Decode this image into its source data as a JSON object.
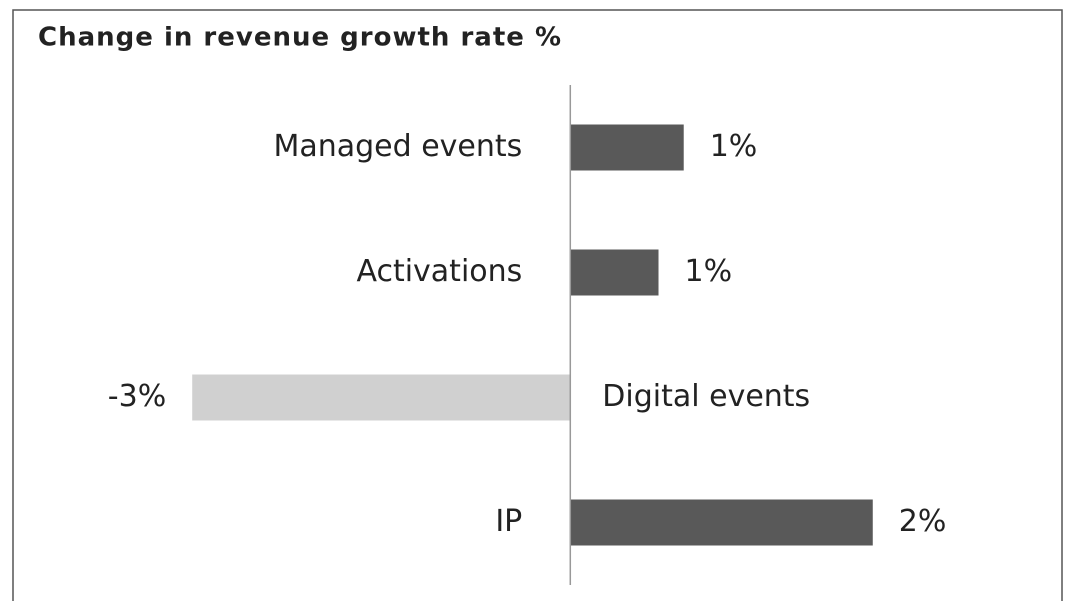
{
  "chart_data": {
    "type": "bar",
    "orientation": "horizontal",
    "title": "Change in revenue growth rate %",
    "categories": [
      "Managed events",
      "Activations",
      "Digital events",
      "IP"
    ],
    "values": [
      0.9,
      0.7,
      -3.0,
      2.4
    ],
    "value_labels": [
      "1%",
      "1%",
      "-3%",
      "2%"
    ],
    "colors": [
      "#595959",
      "#595959",
      "#d0d0d0",
      "#595959"
    ],
    "xlim": [
      -3.2,
      3.6
    ]
  }
}
